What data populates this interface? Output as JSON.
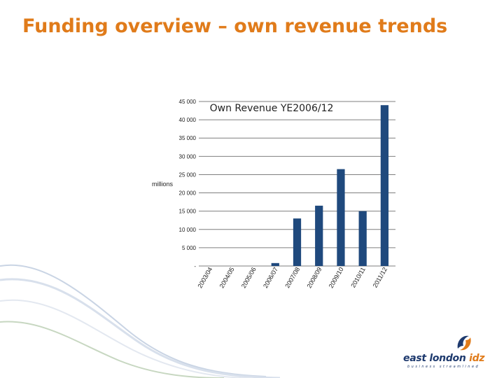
{
  "slide": {
    "title": "Funding overview – own revenue trends"
  },
  "logo": {
    "name_part1": "east london ",
    "name_part2": "idz",
    "tagline": "business streamlined"
  },
  "colors": {
    "title": "#e07b1a",
    "bar": "#1f497d",
    "grid": "#7f7f7f",
    "logo_blue": "#1e3a6e",
    "logo_orange": "#e07b1a"
  },
  "chart_data": {
    "type": "bar",
    "title": "Own Revenue YE2006/12",
    "ylabel": "millions",
    "xlabel": "",
    "categories": [
      "2003/04",
      "2004/05",
      "2005/06",
      "2006/07",
      "2007/08",
      "2008/09",
      "2009/10",
      "2010/11",
      "2011/12"
    ],
    "values": [
      0,
      0,
      0,
      800,
      13000,
      16500,
      26500,
      15000,
      44000
    ],
    "ylim": [
      0,
      45000
    ],
    "yticks": [
      0,
      5000,
      10000,
      15000,
      20000,
      25000,
      30000,
      35000,
      40000,
      45000
    ],
    "ytick_labels": [
      "-",
      "5 000",
      "10 000",
      "15 000",
      "20 000",
      "25 000",
      "30 000",
      "35 000",
      "40 000",
      "45 000"
    ],
    "grid": true,
    "legend": "none"
  }
}
